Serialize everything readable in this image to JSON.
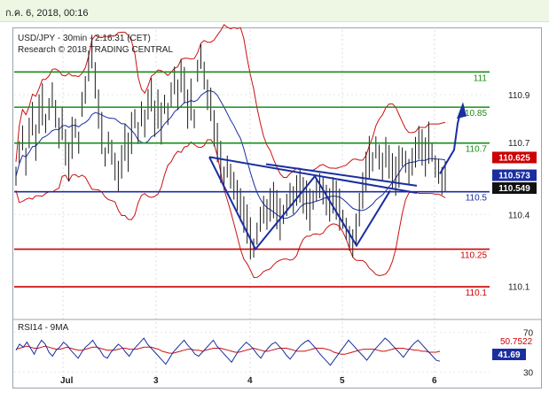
{
  "header": {
    "timestamp": "ก.ค. 6, 2018, 00:16"
  },
  "chart_data": [
    {
      "type": "line",
      "title": "USD/JPY - 30min - 2:16:31 (CET)",
      "subtitle": "Research © 2018 TRADING CENTRAL",
      "y_ticks": [
        "110.9",
        "110.7",
        "110.4",
        "110.1"
      ],
      "ylim": [
        109.98,
        111.17
      ],
      "x_ticks": [
        "Jul",
        "3",
        "4",
        "5",
        "6"
      ],
      "levels": [
        {
          "label": "111",
          "value": 110.995,
          "color": "#1a8c1a"
        },
        {
          "label": "110.85",
          "value": 110.848,
          "color": "#1a8c1a"
        },
        {
          "label": "110.7",
          "value": 110.698,
          "color": "#1a8c1a"
        },
        {
          "label": "110.5",
          "value": 110.495,
          "color": "#1a2ea0"
        },
        {
          "label": "110.25",
          "value": 110.255,
          "color": "#cc0000"
        },
        {
          "label": "110.1",
          "value": 110.098,
          "color": "#cc0000"
        }
      ],
      "price_tags": [
        {
          "label": "110.625",
          "value": 110.625,
          "color": "#cc0000"
        },
        {
          "label": "110.573",
          "value": 110.573,
          "color": "#1a2ea0"
        },
        {
          "label": "110.549",
          "value": 110.549,
          "color": "#000000"
        }
      ],
      "series": [
        {
          "values": [
            110.56,
            110.66,
            110.72,
            110.62,
            110.74,
            110.8,
            110.7,
            110.82,
            110.86,
            110.78,
            110.84,
            110.9,
            110.82,
            110.74,
            110.78,
            110.68,
            110.62,
            110.72,
            110.76,
            110.7,
            110.86,
            110.92,
            111.02,
            111.08,
            110.96,
            110.84,
            110.74,
            110.64,
            110.7,
            110.66,
            110.6,
            110.56,
            110.62,
            110.7,
            110.66,
            110.74,
            110.8,
            110.74,
            110.82,
            110.78,
            110.86,
            110.9,
            110.8,
            110.84,
            110.78,
            110.86,
            110.82,
            110.9,
            110.96,
            110.9,
            110.98,
            110.94,
            110.84,
            110.88,
            110.8,
            111.0,
            111.06,
            110.98,
            110.9,
            110.86,
            110.76,
            110.7,
            110.62,
            110.56,
            110.6,
            110.56,
            110.52,
            110.48,
            110.44,
            110.4,
            110.36,
            110.3,
            110.26,
            110.32,
            110.38,
            110.42,
            110.4,
            110.44,
            110.46,
            110.42,
            110.38,
            110.4,
            110.44,
            110.48,
            110.46,
            110.5,
            110.52,
            110.48,
            110.46,
            110.42,
            110.46,
            110.5,
            110.52,
            110.5,
            110.46,
            110.44,
            110.48,
            110.46,
            110.42,
            110.38,
            110.34,
            110.3,
            110.28,
            110.34,
            110.42,
            110.5,
            110.58,
            110.64,
            110.62,
            110.68,
            110.64,
            110.6,
            110.66,
            110.62,
            110.58,
            110.56,
            110.6,
            110.64,
            110.62,
            110.58,
            110.62,
            110.66,
            110.7,
            110.68,
            110.64,
            110.7,
            110.66,
            110.6,
            110.58,
            110.54,
            110.56
          ]
        }
      ]
    },
    {
      "type": "line",
      "title": "RSI14 - 9MA",
      "y_ticks": [
        "70",
        "30"
      ],
      "ylim": [
        20,
        80
      ],
      "value_tags": [
        {
          "label": "50.7522",
          "value": 50.75,
          "color": "#cc0000"
        },
        {
          "label": "41.69",
          "value": 41.69,
          "color": "#1a2ea0"
        }
      ],
      "series": [
        {
          "values": [
            52,
            58,
            55,
            60,
            54,
            48,
            56,
            62,
            58,
            50,
            46,
            52,
            55,
            60,
            57,
            52,
            48,
            44,
            50,
            55,
            58,
            62,
            56,
            52,
            46,
            44,
            50,
            54,
            58,
            55,
            50,
            46,
            52,
            56,
            60,
            64,
            58,
            54,
            50,
            46,
            42,
            38,
            44,
            50,
            54,
            58,
            62,
            57,
            53,
            48,
            46,
            50,
            54,
            58,
            62,
            56,
            52,
            48,
            44,
            40,
            46,
            52,
            56,
            60,
            57,
            53,
            48,
            44,
            50,
            54,
            58,
            60,
            56,
            52,
            47,
            43,
            48,
            53,
            57,
            60,
            62,
            58,
            54,
            49,
            45,
            41,
            37,
            42,
            47,
            52,
            57,
            62,
            58,
            54,
            50,
            46,
            42,
            47,
            52,
            56,
            60,
            64,
            61,
            57,
            53,
            49,
            45,
            50,
            55,
            59,
            62,
            58,
            54,
            50,
            46,
            42,
            41
          ]
        },
        {
          "values": [
            53,
            54,
            55,
            56,
            55,
            54,
            54,
            55,
            56,
            55,
            54,
            53,
            53,
            54,
            55,
            54,
            53,
            52,
            52,
            53,
            54,
            55,
            55,
            54,
            53,
            52,
            52,
            52,
            53,
            54,
            54,
            53,
            53,
            53,
            54,
            55,
            55,
            55,
            54,
            53,
            51,
            50,
            49,
            49,
            50,
            51,
            52,
            53,
            53,
            52,
            52,
            51,
            52,
            53,
            54,
            54,
            54,
            53,
            52,
            51,
            50,
            50,
            51,
            52,
            53,
            54,
            53,
            52,
            51,
            51,
            52,
            53,
            54,
            54,
            54,
            53,
            52,
            51,
            51,
            51,
            52,
            53,
            54,
            54,
            54,
            53,
            52,
            50,
            49,
            48,
            48,
            49,
            50,
            51,
            52,
            53,
            53,
            53,
            53,
            52,
            51,
            51,
            52,
            53,
            54,
            54,
            54,
            53,
            53,
            52,
            52,
            51,
            51,
            50,
            50,
            50,
            51
          ]
        }
      ]
    }
  ]
}
